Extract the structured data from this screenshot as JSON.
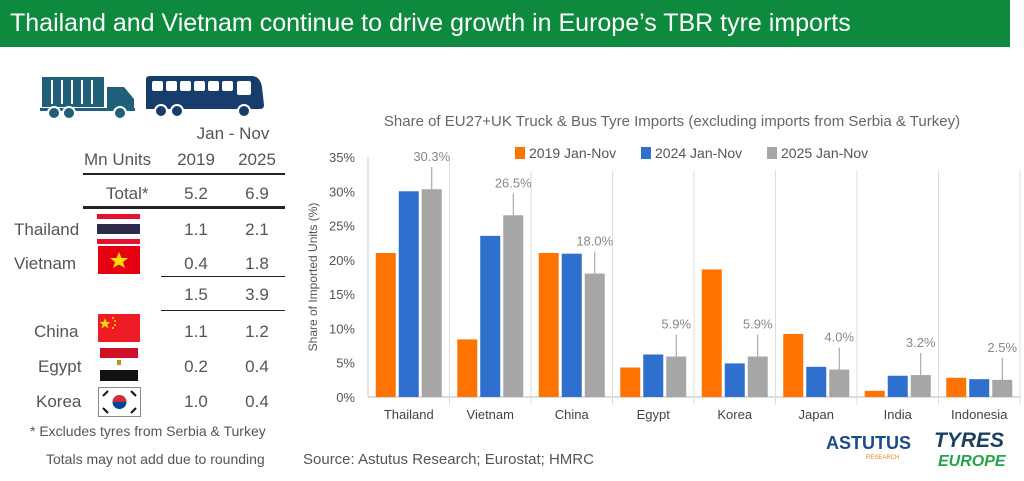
{
  "title": "Thailand and Vietnam continue to drive growth in Europe’s TBR tyre imports",
  "table": {
    "period": "Jan - Nov",
    "unit_label": "Mn Units",
    "col1": "2019",
    "col2": "2025",
    "total": {
      "label": "Total*",
      "v2019": "5.2",
      "v2025": "6.9"
    },
    "rows": [
      {
        "country": "Thailand",
        "v2019": "1.1",
        "v2025": "2.1"
      },
      {
        "country": "Vietnam",
        "v2019": "0.4",
        "v2025": "1.8"
      },
      {
        "country": "",
        "v2019": "1.5",
        "v2025": "3.9"
      },
      {
        "country": "China",
        "v2019": "1.1",
        "v2025": "1.2"
      },
      {
        "country": "Egypt",
        "v2019": "0.2",
        "v2025": "0.4"
      },
      {
        "country": "Korea",
        "v2019": "1.0",
        "v2025": "0.4"
      }
    ],
    "footnote1": "* Excludes tyres from Serbia & Turkey",
    "footnote2": "Totals may not add due to rounding"
  },
  "source": "Source: Astutus Research; Eurostat; HMRC",
  "logos": {
    "astutus": "ASTUTUS",
    "astutus_sub": "RESEARCH",
    "tyres": "TYRES",
    "europe": "EUROPE"
  },
  "chart_data": {
    "type": "bar",
    "title": "Share of EU27+UK Truck & Bus Tyre Imports (excluding imports from Serbia & Turkey)",
    "xlabel": "",
    "ylabel": "Share of Imported Units (%)",
    "ylim": [
      0,
      35
    ],
    "yticks": [
      "0%",
      "5%",
      "10%",
      "15%",
      "20%",
      "25%",
      "30%",
      "35%"
    ],
    "legend_position": "top",
    "categories": [
      "Thailand",
      "Vietnam",
      "China",
      "Egypt",
      "Korea",
      "Japan",
      "India",
      "Indonesia"
    ],
    "series": [
      {
        "name": "2019 Jan-Nov",
        "color": "#ff7300",
        "values": [
          21.0,
          8.4,
          21.0,
          4.3,
          18.6,
          9.2,
          0.9,
          2.8
        ]
      },
      {
        "name": "2024 Jan-Nov",
        "color": "#2f6fce",
        "values": [
          30.0,
          23.5,
          20.9,
          6.2,
          4.9,
          4.4,
          3.1,
          2.6
        ]
      },
      {
        "name": "2025 Jan-Nov",
        "color": "#a6a6a6",
        "values": [
          30.3,
          26.5,
          18.0,
          5.9,
          5.9,
          4.0,
          3.2,
          2.5
        ]
      }
    ],
    "data_labels": [
      "30.3%",
      "26.5%",
      "18.0%",
      "5.9%",
      "5.9%",
      "4.0%",
      "3.2%",
      "2.5%"
    ]
  }
}
